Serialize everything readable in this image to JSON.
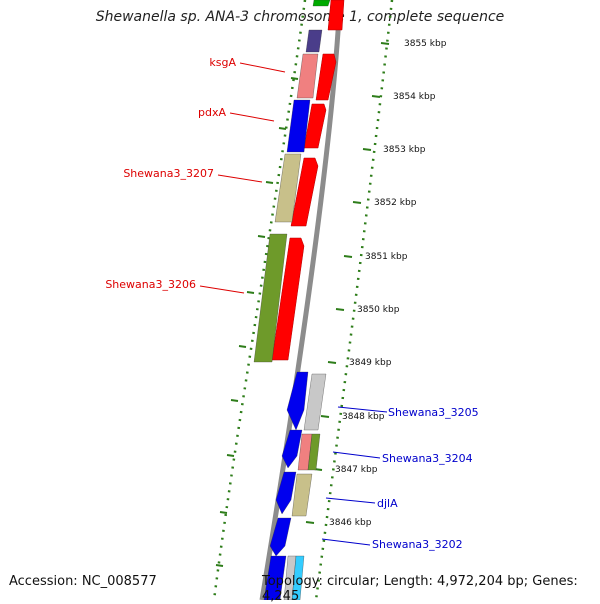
{
  "title": "Shewanella sp. ANA-3 chromosome 1, complete sequence",
  "footer": {
    "accession": "Accession: NC_008577",
    "topology": "Topology: circular; Length: 4,972,204 bp; Genes: 4,245"
  },
  "scale": [
    {
      "label": "3855 kbp"
    },
    {
      "label": "3854 kbp"
    },
    {
      "label": "3853 kbp"
    },
    {
      "label": "3852 kbp"
    },
    {
      "label": "3851 kbp"
    },
    {
      "label": "3850 kbp"
    },
    {
      "label": "3849 kbp"
    },
    {
      "label": "3848 kbp"
    },
    {
      "label": "3847 kbp"
    },
    {
      "label": "3846 kbp"
    }
  ],
  "gene_labels": [
    {
      "name": "ksgA",
      "color": "#dd0000"
    },
    {
      "name": "pdxA",
      "color": "#dd0000"
    },
    {
      "name": "Shewana3_3207",
      "color": "#dd0000"
    },
    {
      "name": "Shewana3_3206",
      "color": "#dd0000"
    },
    {
      "name": "Shewana3_3205",
      "color": "#0000cc"
    },
    {
      "name": "Shewana3_3204",
      "color": "#0000cc"
    },
    {
      "name": "djlA",
      "color": "#0000cc"
    },
    {
      "name": "Shewana3_3202",
      "color": "#0000cc"
    }
  ],
  "colors": {
    "backbone": "#8c8c8c",
    "tick_green": "#2e7d1a",
    "strand_red": "#ff0000",
    "cog_blue": "#0000ee",
    "cog_pink": "#f08080",
    "cog_olive": "#c8c08a",
    "cog_green": "#6e9a2a",
    "cog_grey": "#c8c8c8",
    "cog_navy": "#4a3d8a",
    "cog_cyan": "#33ccff"
  }
}
